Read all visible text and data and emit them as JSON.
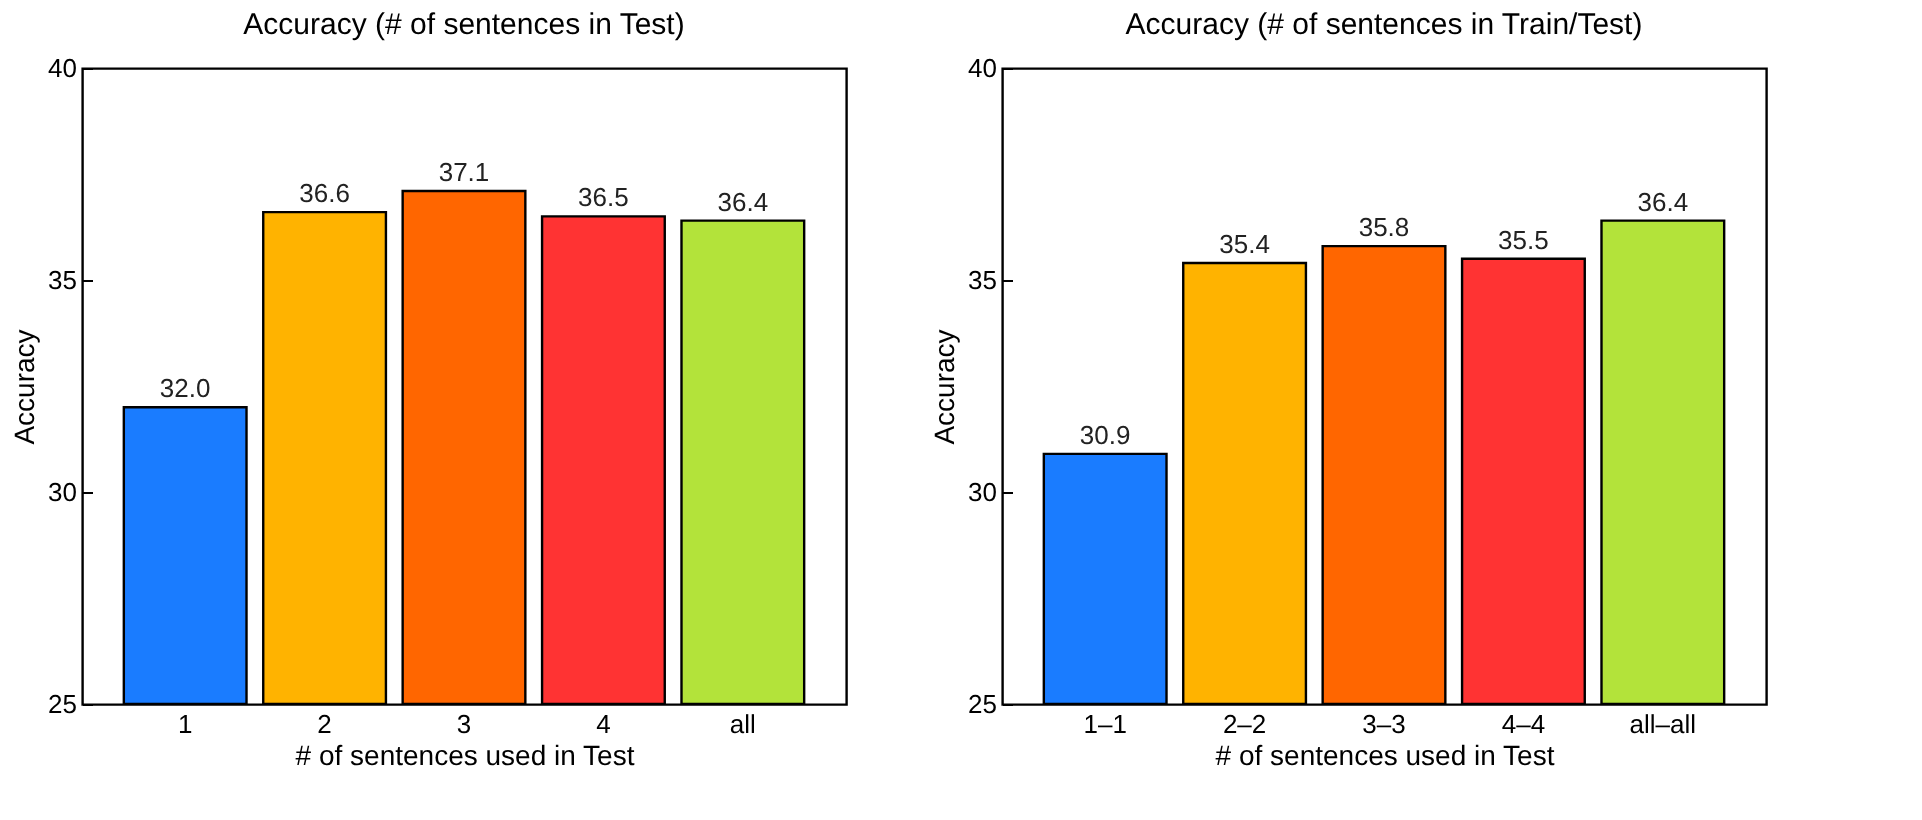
{
  "chart_data": [
    {
      "type": "bar",
      "title": "Accuracy (# of sentences in Test)",
      "xlabel": "# of sentences used in Test",
      "ylabel": "Accuracy",
      "categories": [
        "1",
        "2",
        "3",
        "4",
        "all"
      ],
      "values": [
        32.0,
        36.6,
        37.1,
        36.5,
        36.4
      ],
      "value_labels": [
        "32.0",
        "36.6",
        "37.1",
        "36.5",
        "36.4"
      ],
      "colors": [
        "#1a7cff",
        "#ffb300",
        "#ff6600",
        "#ff3333",
        "#b3e33a"
      ],
      "ylim": [
        25,
        40
      ],
      "yticks": [
        25,
        30,
        35,
        40
      ],
      "grid": false
    },
    {
      "type": "bar",
      "title": "Accuracy (# of sentences in Train/Test)",
      "xlabel": "# of sentences used in Test",
      "ylabel": "Accuracy",
      "categories": [
        "1–1",
        "2–2",
        "3–3",
        "4–4",
        "all–all"
      ],
      "values": [
        30.9,
        35.4,
        35.8,
        35.5,
        36.4
      ],
      "value_labels": [
        "30.9",
        "35.4",
        "35.8",
        "35.5",
        "36.4"
      ],
      "colors": [
        "#1a7cff",
        "#ffb300",
        "#ff6600",
        "#ff3333",
        "#b3e33a"
      ],
      "ylim": [
        25,
        40
      ],
      "yticks": [
        25,
        30,
        35,
        40
      ],
      "grid": false
    }
  ]
}
